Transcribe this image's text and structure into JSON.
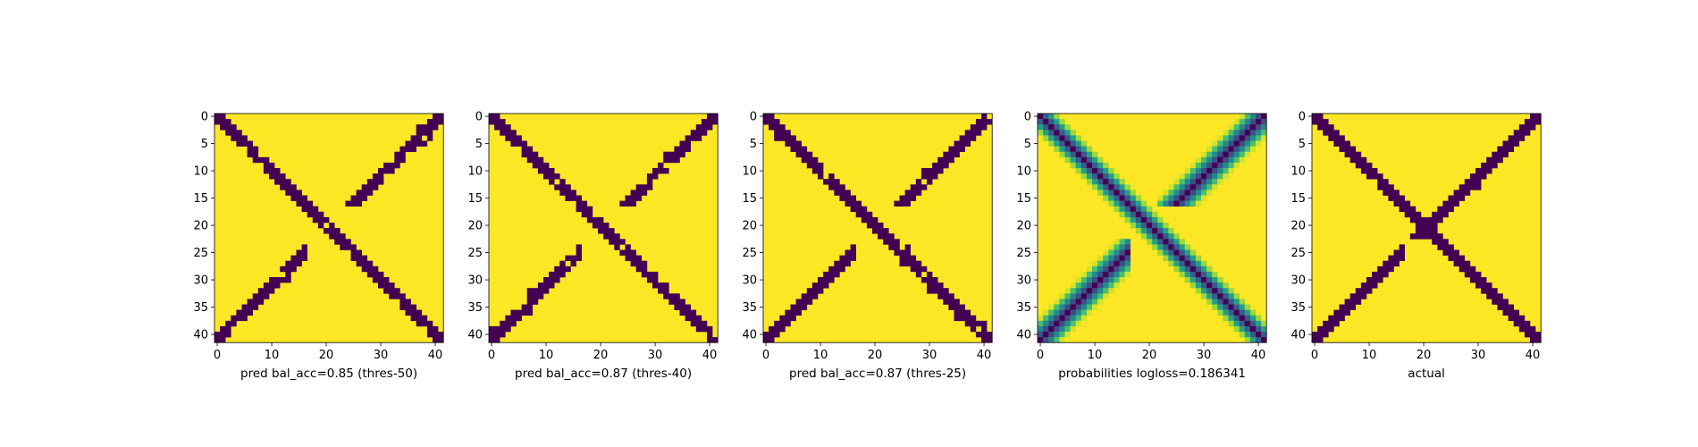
{
  "figure": {
    "panels": [
      {
        "label": "pred bal_acc=0.85 (thres-50)",
        "kind": "binary",
        "seed": 11,
        "thick": 2.2,
        "antiThick": 1.6,
        "noise": 0.06
      },
      {
        "label": "pred bal_acc=0.87 (thres-40)",
        "kind": "binary",
        "seed": 23,
        "thick": 2.4,
        "antiThick": 1.7,
        "noise": 0.05
      },
      {
        "label": "pred bal_acc=0.87 (thres-25)",
        "kind": "binary",
        "seed": 37,
        "thick": 2.8,
        "antiThick": 2.0,
        "noise": 0.05
      },
      {
        "label": "probabilities logloss=0.186341",
        "kind": "prob",
        "seed": 51,
        "thick": 3.5,
        "antiThick": 3.0,
        "noise": 0.0
      },
      {
        "label": "actual",
        "kind": "binary",
        "seed": 5,
        "thick": 1.8,
        "antiThick": 1.6,
        "noise": 0.02
      }
    ]
  },
  "chart_data": [
    {
      "type": "heatmap",
      "title": "",
      "xlabel": "pred bal_acc=0.85 (thres-50)",
      "ylabel": "",
      "shape": [
        42,
        42
      ],
      "values": "binary 0/1 matrix: main diagonal band i≈j plus anti-diagonal segments near rows 0–17 and 23–36",
      "xticks": [
        0,
        10,
        20,
        30,
        40
      ],
      "yticks": [
        0,
        5,
        10,
        15,
        20,
        25,
        30,
        35,
        40
      ],
      "xlim": [
        0,
        41
      ],
      "ylim": [
        41,
        0
      ]
    },
    {
      "type": "heatmap",
      "title": "",
      "xlabel": "pred bal_acc=0.87 (thres-40)",
      "ylabel": "",
      "shape": [
        42,
        42
      ],
      "values": "binary 0/1 matrix: main diagonal band i≈j plus anti-diagonal segments near rows 0–17 and 23–36",
      "xticks": [
        0,
        10,
        20,
        30,
        40
      ],
      "yticks": [
        0,
        5,
        10,
        15,
        20,
        25,
        30,
        35,
        40
      ],
      "xlim": [
        0,
        41
      ],
      "ylim": [
        41,
        0
      ]
    },
    {
      "type": "heatmap",
      "title": "",
      "xlabel": "pred bal_acc=0.87 (thres-25)",
      "ylabel": "",
      "shape": [
        42,
        42
      ],
      "values": "binary 0/1 matrix: main diagonal band i≈j plus anti-diagonal segments near rows 0–17 and 23–36",
      "xticks": [
        0,
        10,
        20,
        30,
        40
      ],
      "yticks": [
        0,
        5,
        10,
        15,
        20,
        25,
        30,
        35,
        40
      ],
      "xlim": [
        0,
        41
      ],
      "ylim": [
        41,
        0
      ]
    },
    {
      "type": "heatmap",
      "title": "",
      "xlabel": "probabilities logloss=0.186341",
      "ylabel": "",
      "shape": [
        42,
        42
      ],
      "values": "probability matrix in [0,1]: high along main diagonal and anti-diagonal segments",
      "xticks": [
        0,
        10,
        20,
        30,
        40
      ],
      "yticks": [
        0,
        5,
        10,
        15,
        20,
        25,
        30,
        35,
        40
      ],
      "xlim": [
        0,
        41
      ],
      "ylim": [
        41,
        0
      ]
    },
    {
      "type": "heatmap",
      "title": "",
      "xlabel": "actual",
      "ylabel": "",
      "shape": [
        42,
        42
      ],
      "values": "binary 0/1 contact matrix: main diagonal band and full anti-diagonal forming an X",
      "xticks": [
        0,
        10,
        20,
        30,
        40
      ],
      "yticks": [
        0,
        5,
        10,
        15,
        20,
        25,
        30,
        35,
        40
      ],
      "xlim": [
        0,
        41
      ],
      "ylim": [
        41,
        0
      ]
    }
  ],
  "colors": {
    "low": "#440154",
    "high": "#fde725",
    "background": "#ffffff"
  }
}
